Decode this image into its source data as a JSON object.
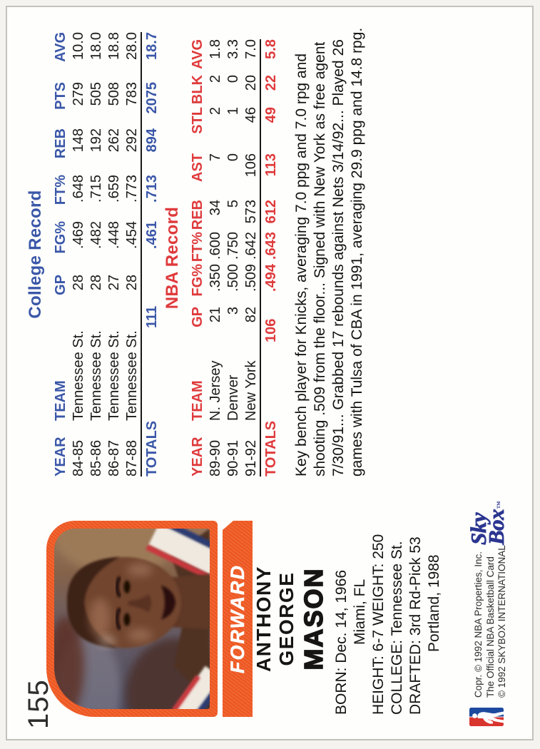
{
  "card": {
    "number": "155",
    "position": "FORWARD",
    "name": {
      "first": "ANTHONY",
      "middle": "GEORGE",
      "last": "MASON"
    },
    "bio": {
      "born": "BORN: Dec. 14, 1966",
      "born_place": "Miami, FL",
      "height_weight": "HEIGHT: 6-7 WEIGHT: 250",
      "college": "COLLEGE: Tennessee St.",
      "drafted": "DRAFTED: 3rd Rd-Pick 53",
      "drafted_team": "Portland, 1988"
    }
  },
  "college_record": {
    "title": "College Record",
    "headers": [
      "YEAR",
      "TEAM",
      "GP",
      "FG%",
      "FT%",
      "REB",
      "PTS",
      "AVG"
    ],
    "rows": [
      {
        "year": "84-85",
        "team": "Tennessee St.",
        "gp": "28",
        "fg": ".469",
        "ft": ".648",
        "reb": "148",
        "pts": "279",
        "avg": "10.0"
      },
      {
        "year": "85-86",
        "team": "Tennessee St.",
        "gp": "28",
        "fg": ".482",
        "ft": ".715",
        "reb": "192",
        "pts": "505",
        "avg": "18.0"
      },
      {
        "year": "86-87",
        "team": "Tennessee St.",
        "gp": "27",
        "fg": ".448",
        "ft": ".659",
        "reb": "262",
        "pts": "508",
        "avg": "18.8"
      },
      {
        "year": "87-88",
        "team": "Tennessee St.",
        "gp": "28",
        "fg": ".454",
        "ft": ".773",
        "reb": "292",
        "pts": "783",
        "avg": "28.0"
      }
    ],
    "totals": {
      "label": "TOTALS",
      "gp": "111",
      "fg": ".461",
      "ft": ".713",
      "reb": "894",
      "pts": "2075",
      "avg": "18.7"
    }
  },
  "nba_record": {
    "title": "NBA Record",
    "headers": [
      "YEAR",
      "TEAM",
      "GP",
      "FG%",
      "FT%",
      "REB",
      "AST",
      "STL",
      "BLK",
      "AVG"
    ],
    "rows": [
      {
        "year": "89-90",
        "team": "N. Jersey",
        "gp": "21",
        "fg": ".350",
        "ft": ".600",
        "reb": "34",
        "ast": "7",
        "stl": "2",
        "blk": "2",
        "avg": "1.8"
      },
      {
        "year": "90-91",
        "team": "Denver",
        "gp": "3",
        "fg": ".500",
        "ft": ".750",
        "reb": "5",
        "ast": "0",
        "stl": "1",
        "blk": "0",
        "avg": "3.3"
      },
      {
        "year": "91-92",
        "team": "New York",
        "gp": "82",
        "fg": ".509",
        "ft": ".642",
        "reb": "573",
        "ast": "106",
        "stl": "46",
        "blk": "20",
        "avg": "7.0"
      }
    ],
    "totals": {
      "label": "TOTALS",
      "gp": "106",
      "fg": ".494",
      "ft": ".643",
      "reb": "612",
      "ast": "113",
      "stl": "49",
      "blk": "22",
      "avg": "5.8"
    }
  },
  "note": "Key bench player for Knicks, averaging 7.0 ppg and 7.0 rpg and shooting .509 from the floor... Signed with New York as free agent 7/30/91... Grabbed 17 rebounds against Nets 3/14/92... Played 26 games with Tulsa of CBA in 1991, averaging 29.9 ppg and 14.8 rpg.",
  "footer": {
    "copyright_lines": [
      "Copr. © 1992 NBA Properties, Inc.",
      "The Official NBA Basketball Card",
      "© 1992 SKYBOX INTERNATIONAL"
    ],
    "skybox_line1": "Sky",
    "skybox_line2": "Box",
    "skybox_tm": "™"
  },
  "colors": {
    "orange": "#ee5822",
    "college_blue": "#3a57a8",
    "nba_red": "#df3a3c",
    "skybox_navy": "#2b3690"
  }
}
